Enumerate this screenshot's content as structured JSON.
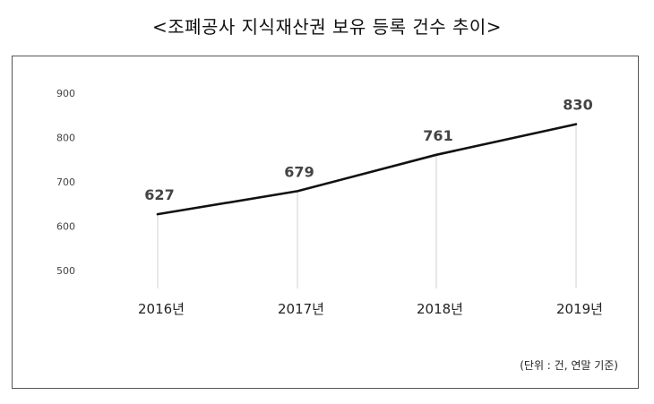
{
  "title": "<조폐공사 지식재산권 보유 등록 건수 추이>",
  "unit_note": "(단위 : 건, 연말 기준)",
  "chart_data": {
    "type": "line",
    "title": "<조폐공사 지식재산권 보유 등록 건수 추이>",
    "categories": [
      "2016년",
      "2017년",
      "2018년",
      "2019년"
    ],
    "series": [
      {
        "values": [
          627,
          679,
          761,
          830
        ]
      }
    ],
    "data_labels": [
      "627",
      "679",
      "761",
      "830"
    ],
    "yticks": [
      "500",
      "600",
      "700",
      "800",
      "900"
    ],
    "ylim": [
      500,
      900
    ],
    "grid": false,
    "line_color": "#111111",
    "drop_line_color": "#d0d0d0"
  }
}
